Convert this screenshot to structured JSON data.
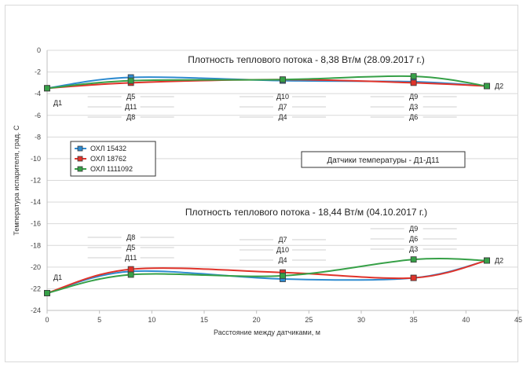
{
  "chart_data": {
    "type": "line",
    "xlabel": "Расстояние между датчиками, м",
    "ylabel": "Температура испарителя, град. С",
    "xlim": [
      0,
      45
    ],
    "ylim": [
      -24,
      0
    ],
    "x_ticks": [
      0,
      5,
      10,
      15,
      20,
      25,
      30,
      35,
      40,
      45
    ],
    "y_ticks": [
      0,
      -2,
      -4,
      -6,
      -8,
      -10,
      -12,
      -14,
      -16,
      -18,
      -20,
      -22,
      -24
    ],
    "grid": "horizontal",
    "legend_position": "left-middle",
    "note_box": "Датчики температуры - Д1-Д11",
    "groups": [
      {
        "title": "Плотность теплового потока - 8,38 Вт/м (28.09.2017 г.)",
        "x": [
          0,
          8,
          22.5,
          35,
          42
        ],
        "series": [
          {
            "name": "ОХЛ 15432",
            "color": "#2e8bd0",
            "values": [
              -3.5,
              -2.5,
              -2.8,
              -2.9,
              -3.3
            ]
          },
          {
            "name": "ОХЛ 18762",
            "color": "#e0332a",
            "values": [
              -3.5,
              -3.0,
              -2.7,
              -3.0,
              -3.3
            ]
          },
          {
            "name": "ОХЛ 1111092",
            "color": "#36a047",
            "values": [
              -3.5,
              -2.8,
              -2.7,
              -2.4,
              -3.3
            ]
          }
        ],
        "sensor_labels": [
          {
            "x": 0,
            "lines": [
              "Д1"
            ]
          },
          {
            "x": 8,
            "lines": [
              "Д5",
              "Д11",
              "Д8"
            ]
          },
          {
            "x": 22.5,
            "lines": [
              "Д10",
              "Д7",
              "Д4"
            ]
          },
          {
            "x": 35,
            "lines": [
              "Д9",
              "Д3",
              "Д6"
            ]
          },
          {
            "x": 42,
            "lines": [
              "Д2"
            ]
          }
        ]
      },
      {
        "title": "Плотность теплового потока - 18,44 Вт/м (04.10.2017 г.)",
        "x": [
          0,
          8,
          22.5,
          35,
          42
        ],
        "series": [
          {
            "name": "ОХЛ 15432",
            "color": "#2e8bd0",
            "values": [
              -22.4,
              -20.4,
              -21.1,
              -21.0,
              -19.4
            ]
          },
          {
            "name": "ОХЛ 18762",
            "color": "#e0332a",
            "values": [
              -22.4,
              -20.2,
              -20.5,
              -21.0,
              -19.4
            ]
          },
          {
            "name": "ОХЛ 1111092",
            "color": "#36a047",
            "values": [
              -22.4,
              -20.7,
              -20.8,
              -19.3,
              -19.4
            ]
          }
        ],
        "sensor_labels": [
          {
            "x": 0,
            "lines": [
              "Д1"
            ]
          },
          {
            "x": 8,
            "lines": [
              "Д8",
              "Д5",
              "Д11"
            ]
          },
          {
            "x": 22.5,
            "lines": [
              "Д7",
              "Д10",
              "Д4"
            ]
          },
          {
            "x": 35,
            "lines": [
              "Д9",
              "Д6",
              "Д3"
            ]
          },
          {
            "x": 42,
            "lines": [
              "Д2"
            ]
          }
        ]
      }
    ]
  }
}
